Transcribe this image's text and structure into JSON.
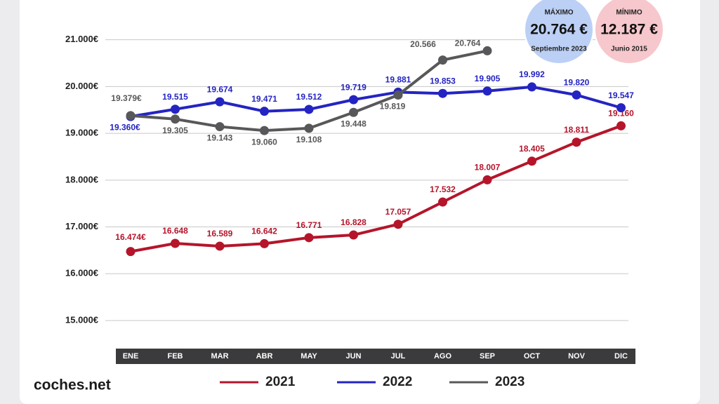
{
  "chart_data": {
    "type": "line",
    "categories": [
      "ENE",
      "FEB",
      "MAR",
      "ABR",
      "MAY",
      "JUN",
      "JUL",
      "AGO",
      "SEP",
      "OCT",
      "NOV",
      "DIC"
    ],
    "series": [
      {
        "name": "2021",
        "color": "#b5152b",
        "values": [
          16474,
          16648,
          16589,
          16642,
          16771,
          16828,
          17057,
          17532,
          18007,
          18405,
          18811,
          19160
        ],
        "value_labels": [
          "16.474€",
          "16.648",
          "16.589",
          "16.642",
          "16.771",
          "16.828",
          "17.057",
          "17.532",
          "18.007",
          "18.405",
          "18.811",
          "19.160"
        ]
      },
      {
        "name": "2022",
        "color": "#2424c2",
        "values": [
          19360,
          19515,
          19674,
          19471,
          19512,
          19719,
          19881,
          19853,
          19905,
          19992,
          19820,
          19547
        ],
        "value_labels": [
          "19.360€",
          "19.515",
          "19.674",
          "19.471",
          "19.512",
          "19.719",
          "19.881",
          "19.853",
          "19.905",
          "19.992",
          "19.820",
          "19.547"
        ]
      },
      {
        "name": "2023",
        "color": "#58585a",
        "values": [
          19379,
          19305,
          19143,
          19060,
          19108,
          19448,
          19819,
          20566,
          20764,
          null,
          null,
          null
        ],
        "value_labels": [
          "19.379€",
          "19.305",
          "19.143",
          "19.060",
          "19.108",
          "19.448",
          "19.819",
          "20.566",
          "20.764",
          null,
          null,
          null
        ]
      }
    ],
    "ylim": [
      14400,
      21250
    ],
    "yticks": [
      {
        "value": 15000,
        "label": "15.000€"
      },
      {
        "value": 16000,
        "label": "16.000€"
      },
      {
        "value": 17000,
        "label": "17.000€"
      },
      {
        "value": 18000,
        "label": "18.000€"
      },
      {
        "value": 19000,
        "label": "19.000€"
      },
      {
        "value": 20000,
        "label": "20.000€"
      },
      {
        "value": 21000,
        "label": "21.000€"
      }
    ],
    "grid": true,
    "annotations": [
      {
        "title": "MÁXIMO",
        "value": "20.764 €",
        "note": "Septiembre 2023",
        "color": "#bcd0f5"
      },
      {
        "title": "MÍNIMO",
        "value": "12.187 €",
        "note": "Junio 2015",
        "color": "#f6c7cc"
      }
    ]
  },
  "logo": "coches.net"
}
